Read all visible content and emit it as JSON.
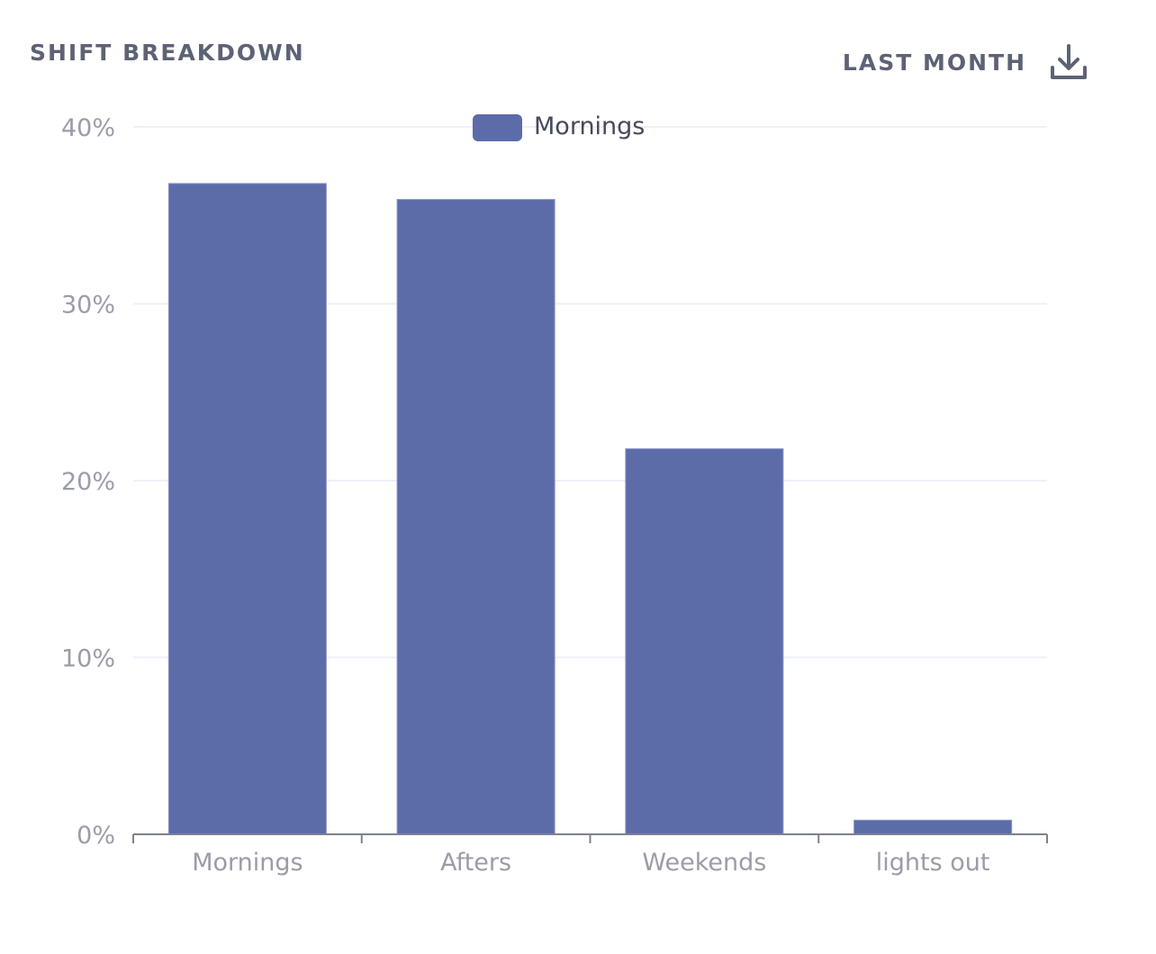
{
  "header": {
    "title": "SHIFT BREAKDOWN",
    "period_label": "LAST MONTH",
    "download_icon": "download-icon"
  },
  "colors": {
    "bar": "#5c6ca9",
    "grid": "#eef0f8",
    "axis": "#7d8190",
    "title": "#5d6275"
  },
  "chart_data": {
    "type": "bar",
    "title": "",
    "xlabel": "",
    "ylabel": "",
    "categories": [
      "Mornings",
      "Afters",
      "Weekends",
      "lights out"
    ],
    "series": [
      {
        "name": "Mornings",
        "values": [
          36.8,
          35.9,
          21.8,
          0.8
        ]
      }
    ],
    "ylim": [
      0,
      40
    ],
    "y_ticks": [
      0,
      10,
      20,
      30,
      40
    ],
    "y_tick_labels": [
      "0%",
      "10%",
      "20%",
      "30%",
      "40%"
    ],
    "grid": true,
    "legend_position": "top-center"
  }
}
